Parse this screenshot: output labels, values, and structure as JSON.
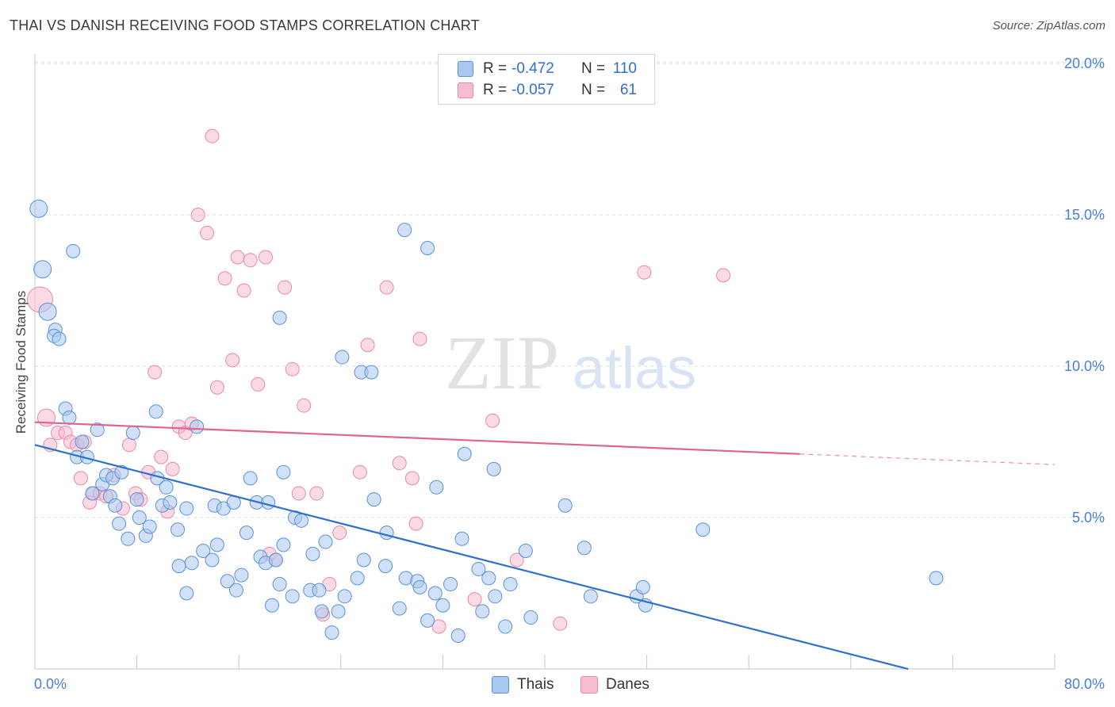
{
  "header": {
    "title": "THAI VS DANISH RECEIVING FOOD STAMPS CORRELATION CHART",
    "source": "Source: ZipAtlas.com"
  },
  "watermark": {
    "zip": "ZIP",
    "atlas": "atlas"
  },
  "legend": {
    "rows": [
      {
        "r_label": "R =",
        "r_value": "-0.472",
        "n_label": "N =",
        "n_value": "110"
      },
      {
        "r_label": "R =",
        "r_value": "-0.057",
        "n_label": "N =",
        "n_value": "61"
      }
    ],
    "bottom": [
      {
        "label": "Thais"
      },
      {
        "label": "Danes"
      }
    ]
  },
  "colors": {
    "thais_fill": "#a9c8f0",
    "thais_stroke": "#5a92d8",
    "thais_line": "#2f6fcf",
    "danes_fill": "#f7bcd0",
    "danes_stroke": "#e58aa8",
    "danes_line": "#e0648e",
    "tick_label": "#4a7fd0",
    "grid": "#dcdcdc"
  },
  "chart_data": {
    "type": "scatter",
    "title": "THAI VS DANISH RECEIVING FOOD STAMPS CORRELATION CHART",
    "xlabel": "",
    "ylabel": "Receiving Food Stamps",
    "xlim": [
      0,
      80
    ],
    "ylim": [
      0,
      20.5
    ],
    "x_tick_labels": [
      "0.0%",
      "80.0%"
    ],
    "y_ticks": [
      5,
      10,
      15,
      20
    ],
    "y_tick_labels": [
      "5.0%",
      "10.0%",
      "15.0%",
      "20.0%"
    ],
    "grid": true,
    "legend_position": "top-center",
    "series": [
      {
        "name": "Thais",
        "r": -0.472,
        "n": 110,
        "trend": {
          "x": [
            0,
            68.5
          ],
          "y": [
            7.4,
            0.0
          ]
        },
        "points": [
          [
            0.3,
            15.2
          ],
          [
            0.6,
            13.2
          ],
          [
            1.0,
            11.8
          ],
          [
            1.6,
            11.2
          ],
          [
            1.5,
            11.0
          ],
          [
            1.9,
            10.9
          ],
          [
            3.0,
            13.8
          ],
          [
            2.4,
            8.6
          ],
          [
            2.7,
            8.3
          ],
          [
            3.3,
            7.0
          ],
          [
            4.1,
            7.0
          ],
          [
            3.7,
            7.5
          ],
          [
            4.9,
            7.9
          ],
          [
            5.3,
            6.1
          ],
          [
            5.6,
            6.4
          ],
          [
            4.5,
            5.8
          ],
          [
            6.1,
            6.3
          ],
          [
            5.9,
            5.7
          ],
          [
            6.3,
            5.4
          ],
          [
            6.8,
            6.5
          ],
          [
            7.7,
            7.8
          ],
          [
            8.0,
            5.6
          ],
          [
            8.2,
            5.0
          ],
          [
            6.6,
            4.8
          ],
          [
            7.3,
            4.3
          ],
          [
            8.7,
            4.4
          ],
          [
            9.0,
            4.7
          ],
          [
            9.6,
            6.3
          ],
          [
            10.3,
            6.0
          ],
          [
            10.0,
            5.4
          ],
          [
            10.6,
            5.5
          ],
          [
            9.5,
            8.5
          ],
          [
            12.7,
            8.0
          ],
          [
            11.2,
            4.6
          ],
          [
            11.9,
            5.3
          ],
          [
            12.3,
            3.5
          ],
          [
            11.3,
            3.4
          ],
          [
            11.9,
            2.5
          ],
          [
            13.2,
            3.9
          ],
          [
            13.9,
            3.6
          ],
          [
            14.1,
            5.4
          ],
          [
            14.8,
            5.3
          ],
          [
            15.6,
            5.5
          ],
          [
            14.3,
            4.1
          ],
          [
            15.1,
            2.9
          ],
          [
            15.8,
            2.6
          ],
          [
            16.2,
            3.1
          ],
          [
            16.6,
            4.5
          ],
          [
            16.9,
            6.3
          ],
          [
            17.4,
            5.5
          ],
          [
            18.3,
            5.5
          ],
          [
            17.7,
            3.7
          ],
          [
            18.1,
            3.5
          ],
          [
            18.9,
            3.6
          ],
          [
            19.5,
            4.1
          ],
          [
            19.2,
            2.8
          ],
          [
            18.6,
            2.1
          ],
          [
            20.2,
            2.4
          ],
          [
            20.4,
            5.0
          ],
          [
            20.9,
            4.9
          ],
          [
            21.6,
            2.6
          ],
          [
            22.3,
            2.6
          ],
          [
            22.5,
            1.9
          ],
          [
            21.8,
            3.8
          ],
          [
            22.8,
            4.2
          ],
          [
            23.8,
            1.9
          ],
          [
            24.3,
            2.4
          ],
          [
            23.3,
            1.2
          ],
          [
            24.1,
            10.3
          ],
          [
            25.6,
            9.8
          ],
          [
            26.4,
            9.8
          ],
          [
            19.5,
            6.5
          ],
          [
            25.3,
            3.0
          ],
          [
            25.8,
            3.6
          ],
          [
            26.6,
            5.6
          ],
          [
            27.5,
            3.4
          ],
          [
            27.6,
            4.5
          ],
          [
            28.6,
            2.0
          ],
          [
            29.1,
            3.0
          ],
          [
            30.0,
            2.9
          ],
          [
            30.2,
            2.7
          ],
          [
            30.8,
            1.6
          ],
          [
            31.4,
            2.5
          ],
          [
            29.0,
            14.5
          ],
          [
            30.8,
            13.9
          ],
          [
            19.2,
            11.6
          ],
          [
            31.5,
            6.0
          ],
          [
            32.0,
            2.1
          ],
          [
            32.6,
            2.8
          ],
          [
            33.2,
            1.1
          ],
          [
            33.5,
            4.3
          ],
          [
            33.7,
            7.1
          ],
          [
            34.8,
            3.3
          ],
          [
            35.1,
            1.9
          ],
          [
            35.6,
            3.0
          ],
          [
            36.1,
            2.4
          ],
          [
            36.0,
            6.6
          ],
          [
            37.3,
            2.8
          ],
          [
            36.9,
            1.4
          ],
          [
            38.5,
            3.9
          ],
          [
            38.9,
            1.7
          ],
          [
            41.6,
            5.4
          ],
          [
            43.6,
            2.4
          ],
          [
            43.1,
            4.0
          ],
          [
            47.2,
            2.4
          ],
          [
            47.7,
            2.7
          ],
          [
            47.9,
            2.1
          ],
          [
            52.4,
            4.6
          ],
          [
            70.7,
            3.0
          ]
        ]
      },
      {
        "name": "Danes",
        "r": -0.057,
        "n": 61,
        "trend": {
          "x": [
            0,
            60
          ],
          "y": [
            8.15,
            7.1
          ]
        },
        "trend_dashed": {
          "x": [
            60,
            80
          ],
          "y": [
            7.1,
            6.75
          ]
        },
        "points": [
          [
            0.4,
            12.2
          ],
          [
            0.9,
            8.3
          ],
          [
            1.2,
            7.4
          ],
          [
            1.8,
            7.8
          ],
          [
            2.4,
            7.8
          ],
          [
            2.8,
            7.5
          ],
          [
            3.3,
            7.4
          ],
          [
            3.9,
            7.5
          ],
          [
            3.6,
            6.3
          ],
          [
            4.3,
            5.5
          ],
          [
            4.6,
            5.8
          ],
          [
            5.1,
            5.8
          ],
          [
            5.6,
            5.7
          ],
          [
            6.2,
            6.4
          ],
          [
            6.9,
            5.3
          ],
          [
            7.4,
            7.4
          ],
          [
            7.9,
            5.8
          ],
          [
            8.3,
            5.6
          ],
          [
            8.9,
            6.5
          ],
          [
            9.4,
            9.8
          ],
          [
            9.9,
            7.0
          ],
          [
            10.4,
            5.2
          ],
          [
            10.8,
            6.6
          ],
          [
            11.3,
            8.0
          ],
          [
            11.8,
            7.8
          ],
          [
            12.3,
            8.1
          ],
          [
            12.8,
            15.0
          ],
          [
            13.5,
            14.4
          ],
          [
            13.9,
            17.6
          ],
          [
            14.3,
            9.3
          ],
          [
            14.9,
            12.9
          ],
          [
            15.5,
            10.2
          ],
          [
            15.9,
            13.6
          ],
          [
            16.4,
            12.5
          ],
          [
            16.9,
            13.5
          ],
          [
            17.5,
            9.4
          ],
          [
            18.1,
            13.6
          ],
          [
            18.4,
            3.8
          ],
          [
            18.9,
            3.6
          ],
          [
            19.6,
            12.6
          ],
          [
            20.2,
            9.9
          ],
          [
            20.7,
            5.8
          ],
          [
            21.1,
            8.7
          ],
          [
            22.1,
            5.8
          ],
          [
            22.6,
            1.8
          ],
          [
            23.1,
            2.8
          ],
          [
            23.9,
            4.5
          ],
          [
            25.5,
            6.5
          ],
          [
            26.1,
            10.7
          ],
          [
            27.6,
            12.6
          ],
          [
            28.6,
            6.8
          ],
          [
            29.6,
            6.3
          ],
          [
            29.9,
            4.8
          ],
          [
            30.2,
            10.9
          ],
          [
            31.7,
            1.4
          ],
          [
            34.5,
            2.3
          ],
          [
            35.9,
            8.2
          ],
          [
            37.8,
            3.6
          ],
          [
            41.2,
            1.5
          ],
          [
            47.8,
            13.1
          ],
          [
            54.0,
            13.0
          ]
        ]
      }
    ]
  }
}
